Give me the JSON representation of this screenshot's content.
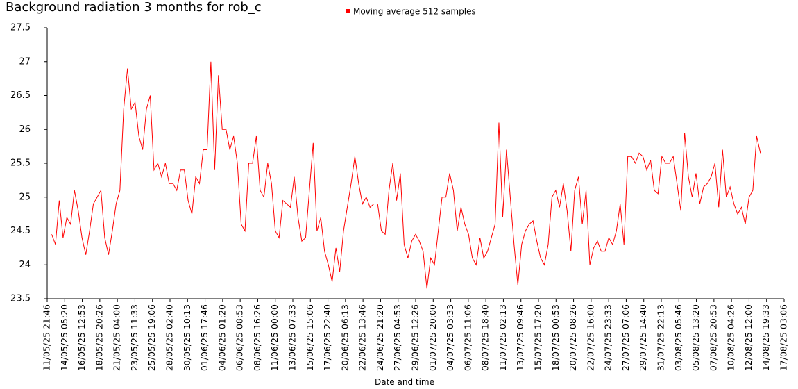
{
  "chart_data": {
    "type": "line",
    "title": "Background radiation 3 months for rob_c",
    "x_label": "Date and time",
    "legend": "top",
    "ylim": [
      23.5,
      27.5
    ],
    "yticks": [
      23.5,
      24,
      24.5,
      25,
      25.5,
      26,
      26.5,
      27,
      27.5
    ],
    "xlim": [
      "11/05/25 21:46",
      "17/08/25 03:06"
    ],
    "xticks": [
      "11/05/25 21:46",
      "14/05/25 05:20",
      "16/05/25 12:53",
      "18/05/25 20:26",
      "21/05/25 04:00",
      "23/05/25 11:33",
      "25/05/25 19:06",
      "28/05/25 02:40",
      "30/05/25 10:13",
      "01/06/25 17:46",
      "04/06/25 01:20",
      "06/06/25 08:53",
      "08/06/25 16:26",
      "11/06/25 00:00",
      "13/06/25 07:33",
      "15/06/25 15:06",
      "17/06/25 22:40",
      "20/06/25 06:13",
      "22/06/25 13:46",
      "24/06/25 21:20",
      "27/06/25 04:53",
      "29/06/25 12:26",
      "01/07/25 20:00",
      "04/07/25 03:33",
      "06/07/25 11:06",
      "08/07/25 18:40",
      "11/07/25 02:13",
      "13/07/25 09:46",
      "15/07/25 17:20",
      "18/07/25 00:53",
      "20/07/25 08:26",
      "22/07/25 16:00",
      "24/07/25 23:33",
      "27/07/25 07:06",
      "29/07/25 14:40",
      "31/07/25 22:13",
      "03/08/25 05:46",
      "05/08/25 13:20",
      "07/08/25 20:53",
      "10/08/25 04:26",
      "12/08/25 12:00",
      "14/08/25 19:33",
      "17/08/25 03:06"
    ],
    "x": [
      "12/05/25 12:00",
      "13/05/25 00:00",
      "13/05/25 12:00",
      "14/05/25 00:00",
      "14/05/25 12:00",
      "15/05/25 00:00",
      "15/05/25 12:00",
      "16/05/25 00:00",
      "16/05/25 12:00",
      "17/05/25 00:00",
      "17/05/25 12:00",
      "18/05/25 00:00",
      "18/05/25 12:00",
      "19/05/25 00:00",
      "19/05/25 12:00",
      "20/05/25 00:00",
      "20/05/25 12:00",
      "21/05/25 00:00",
      "21/05/25 12:00",
      "22/05/25 00:00",
      "22/05/25 12:00",
      "23/05/25 00:00",
      "23/05/25 12:00",
      "24/05/25 00:00",
      "24/05/25 12:00",
      "25/05/25 00:00",
      "25/05/25 12:00",
      "26/05/25 00:00",
      "26/05/25 12:00",
      "27/05/25 00:00",
      "27/05/25 12:00",
      "28/05/25 00:00",
      "28/05/25 12:00",
      "29/05/25 00:00",
      "29/05/25 12:00",
      "30/05/25 00:00",
      "30/05/25 12:00",
      "31/05/25 00:00",
      "31/05/25 12:00",
      "01/06/25 00:00",
      "01/06/25 12:00",
      "02/06/25 00:00",
      "02/06/25 12:00",
      "03/06/25 00:00",
      "03/06/25 12:00",
      "04/06/25 00:00",
      "04/06/25 12:00",
      "05/06/25 00:00",
      "05/06/25 12:00",
      "06/06/25 00:00",
      "06/06/25 12:00",
      "07/06/25 00:00",
      "07/06/25 12:00",
      "08/06/25 00:00",
      "08/06/25 12:00",
      "09/06/25 00:00",
      "09/06/25 12:00",
      "10/06/25 00:00",
      "10/06/25 12:00",
      "11/06/25 00:00",
      "11/06/25 12:00",
      "12/06/25 00:00",
      "12/06/25 12:00",
      "13/06/25 00:00",
      "13/06/25 12:00",
      "14/06/25 00:00",
      "14/06/25 12:00",
      "15/06/25 00:00",
      "15/06/25 12:00",
      "16/06/25 00:00",
      "16/06/25 12:00",
      "17/06/25 00:00",
      "17/06/25 12:00",
      "18/06/25 00:00",
      "18/06/25 12:00",
      "19/06/25 00:00",
      "19/06/25 12:00",
      "20/06/25 00:00",
      "20/06/25 12:00",
      "21/06/25 00:00",
      "21/06/25 12:00",
      "22/06/25 00:00",
      "22/06/25 12:00",
      "23/06/25 00:00",
      "23/06/25 12:00",
      "24/06/25 00:00",
      "24/06/25 12:00",
      "25/06/25 00:00",
      "25/06/25 12:00",
      "26/06/25 00:00",
      "26/06/25 12:00",
      "27/06/25 00:00",
      "27/06/25 12:00",
      "28/06/25 00:00",
      "28/06/25 12:00",
      "29/06/25 00:00",
      "29/06/25 12:00",
      "30/06/25 00:00",
      "30/06/25 12:00",
      "01/07/25 00:00",
      "01/07/25 12:00",
      "02/07/25 00:00",
      "02/07/25 12:00",
      "03/07/25 00:00",
      "03/07/25 12:00",
      "04/07/25 00:00",
      "04/07/25 12:00",
      "05/07/25 00:00",
      "05/07/25 12:00",
      "06/07/25 00:00",
      "06/07/25 12:00",
      "07/07/25 00:00",
      "07/07/25 12:00",
      "08/07/25 00:00",
      "08/07/25 12:00",
      "09/07/25 00:00",
      "09/07/25 12:00",
      "10/07/25 00:00",
      "10/07/25 12:00",
      "11/07/25 00:00",
      "11/07/25 12:00",
      "12/07/25 00:00",
      "12/07/25 12:00",
      "13/07/25 00:00",
      "13/07/25 12:00",
      "14/07/25 00:00",
      "14/07/25 12:00",
      "15/07/25 00:00",
      "15/07/25 12:00",
      "16/07/25 00:00",
      "16/07/25 12:00",
      "17/07/25 00:00",
      "17/07/25 12:00",
      "18/07/25 00:00",
      "18/07/25 12:00",
      "19/07/25 00:00",
      "19/07/25 12:00",
      "20/07/25 00:00",
      "20/07/25 12:00",
      "21/07/25 00:00",
      "21/07/25 12:00",
      "22/07/25 00:00",
      "22/07/25 12:00",
      "23/07/25 00:00",
      "23/07/25 12:00",
      "24/07/25 00:00",
      "24/07/25 12:00",
      "25/07/25 00:00",
      "25/07/25 12:00",
      "26/07/25 00:00",
      "26/07/25 12:00",
      "27/07/25 00:00",
      "27/07/25 12:00",
      "28/07/25 00:00",
      "28/07/25 12:00",
      "29/07/25 00:00",
      "29/07/25 12:00",
      "30/07/25 00:00",
      "30/07/25 12:00",
      "31/07/25 00:00",
      "31/07/25 12:00",
      "01/08/25 00:00",
      "01/08/25 12:00",
      "02/08/25 00:00",
      "02/08/25 12:00",
      "03/08/25 00:00",
      "03/08/25 12:00",
      "04/08/25 00:00",
      "04/08/25 12:00",
      "05/08/25 00:00",
      "05/08/25 12:00",
      "06/08/25 00:00",
      "06/08/25 12:00",
      "07/08/25 00:00",
      "07/08/25 12:00",
      "08/08/25 00:00",
      "08/08/25 12:00",
      "09/08/25 00:00",
      "09/08/25 12:00",
      "10/08/25 00:00",
      "10/08/25 12:00",
      "11/08/25 00:00",
      "11/08/25 12:00",
      "12/08/25 00:00",
      "12/08/25 12:00",
      "13/08/25 00:00",
      "13/08/25 12:00",
      "14/08/25 00:00"
    ],
    "series": [
      {
        "name": "Moving average 512 samples",
        "color": "#ff0000",
        "values": [
          24.45,
          24.3,
          24.95,
          24.4,
          24.7,
          24.6,
          25.1,
          24.8,
          24.4,
          24.15,
          24.5,
          24.9,
          25.0,
          25.1,
          24.4,
          24.15,
          24.5,
          24.9,
          25.1,
          26.3,
          26.9,
          26.3,
          26.4,
          25.9,
          25.7,
          26.3,
          26.5,
          25.4,
          25.5,
          25.3,
          25.5,
          25.2,
          25.2,
          25.1,
          25.4,
          25.4,
          24.95,
          24.75,
          25.3,
          25.2,
          25.7,
          25.7,
          27.0,
          25.4,
          26.8,
          26.0,
          26.0,
          25.7,
          25.9,
          25.5,
          24.6,
          24.5,
          25.5,
          25.5,
          25.9,
          25.1,
          25.0,
          25.5,
          25.2,
          24.5,
          24.4,
          24.95,
          24.9,
          24.85,
          25.3,
          24.7,
          24.35,
          24.4,
          25.1,
          25.8,
          24.5,
          24.7,
          24.2,
          24.0,
          23.75,
          24.25,
          23.9,
          24.5,
          24.85,
          25.2,
          25.6,
          25.2,
          24.9,
          25.0,
          24.85,
          24.9,
          24.9,
          24.5,
          24.45,
          25.1,
          25.5,
          24.95,
          25.35,
          24.3,
          24.1,
          24.35,
          24.45,
          24.35,
          24.2,
          23.65,
          24.1,
          24.0,
          24.5,
          25.0,
          25.0,
          25.35,
          25.1,
          24.5,
          24.85,
          24.6,
          24.45,
          24.1,
          24.0,
          24.4,
          24.1,
          24.2,
          24.4,
          24.6,
          26.1,
          24.7,
          25.7,
          25.0,
          24.3,
          23.7,
          24.3,
          24.5,
          24.6,
          24.65,
          24.35,
          24.1,
          24.0,
          24.3,
          25.0,
          25.1,
          24.85,
          25.2,
          24.8,
          24.2,
          25.1,
          25.3,
          24.6,
          25.1,
          24.0,
          24.25,
          24.35,
          24.2,
          24.2,
          24.4,
          24.3,
          24.5,
          24.9,
          24.3,
          25.6,
          25.6,
          25.5,
          25.65,
          25.6,
          25.4,
          25.55,
          25.1,
          25.05,
          25.6,
          25.5,
          25.5,
          25.6,
          25.2,
          24.8,
          25.95,
          25.3,
          25.0,
          25.35,
          24.9,
          25.15,
          25.2,
          25.3,
          25.5,
          24.85,
          25.7,
          25.0,
          25.15,
          24.9,
          24.75,
          24.85,
          24.6,
          25.0,
          25.1,
          25.9,
          25.65
        ]
      }
    ]
  }
}
